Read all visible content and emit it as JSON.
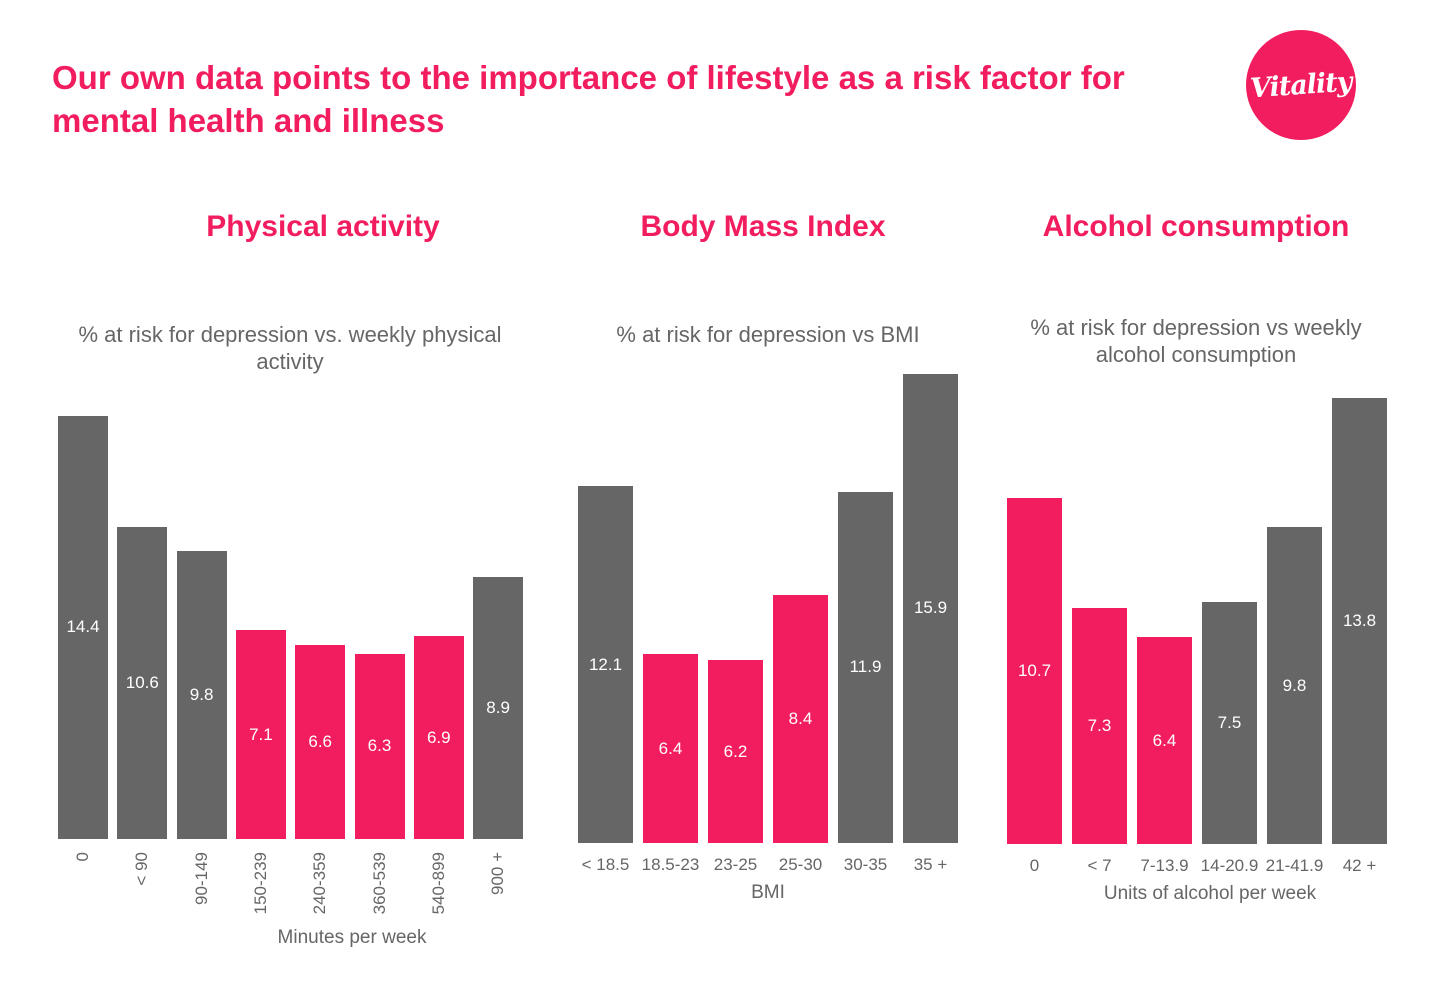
{
  "title": "Our own data points to the importance of lifestyle as a risk factor for mental health and illness",
  "logo_text": "Vitality",
  "colors": {
    "accent": "#F21D5F",
    "neutral": "#666666"
  },
  "chart_data": [
    {
      "type": "bar",
      "section_title": "Physical activity",
      "title": "% at risk for depression vs. weekly physical activity",
      "xlabel": "Minutes per week",
      "categories": [
        "0",
        "< 90",
        "90-149",
        "150-239",
        "240-359",
        "360-539",
        "540-899",
        "900 +"
      ],
      "values": [
        14.4,
        10.6,
        9.8,
        7.1,
        6.6,
        6.3,
        6.9,
        8.9
      ],
      "highlighted": [
        false,
        false,
        false,
        true,
        true,
        true,
        true,
        false
      ],
      "tick_rotation": "vertical"
    },
    {
      "type": "bar",
      "section_title": "Body Mass Index",
      "title": "% at risk for depression vs BMI",
      "xlabel": "BMI",
      "categories": [
        "< 18.5",
        "18.5-23",
        "23-25",
        "25-30",
        "30-35",
        "35 +"
      ],
      "values": [
        12.1,
        6.4,
        6.2,
        8.4,
        11.9,
        15.9
      ],
      "highlighted": [
        false,
        true,
        true,
        true,
        false,
        false
      ]
    },
    {
      "type": "bar",
      "section_title": "Alcohol consumption",
      "title": "% at risk for depression vs weekly alcohol consumption",
      "xlabel": "Units of alcohol per week",
      "categories": [
        "0",
        "< 7",
        "7-13.9",
        "14-20.9",
        "21-41.9",
        "42 +"
      ],
      "values": [
        10.7,
        7.3,
        6.4,
        7.5,
        9.8,
        13.8
      ],
      "highlighted": [
        true,
        true,
        true,
        false,
        false,
        false
      ]
    }
  ]
}
